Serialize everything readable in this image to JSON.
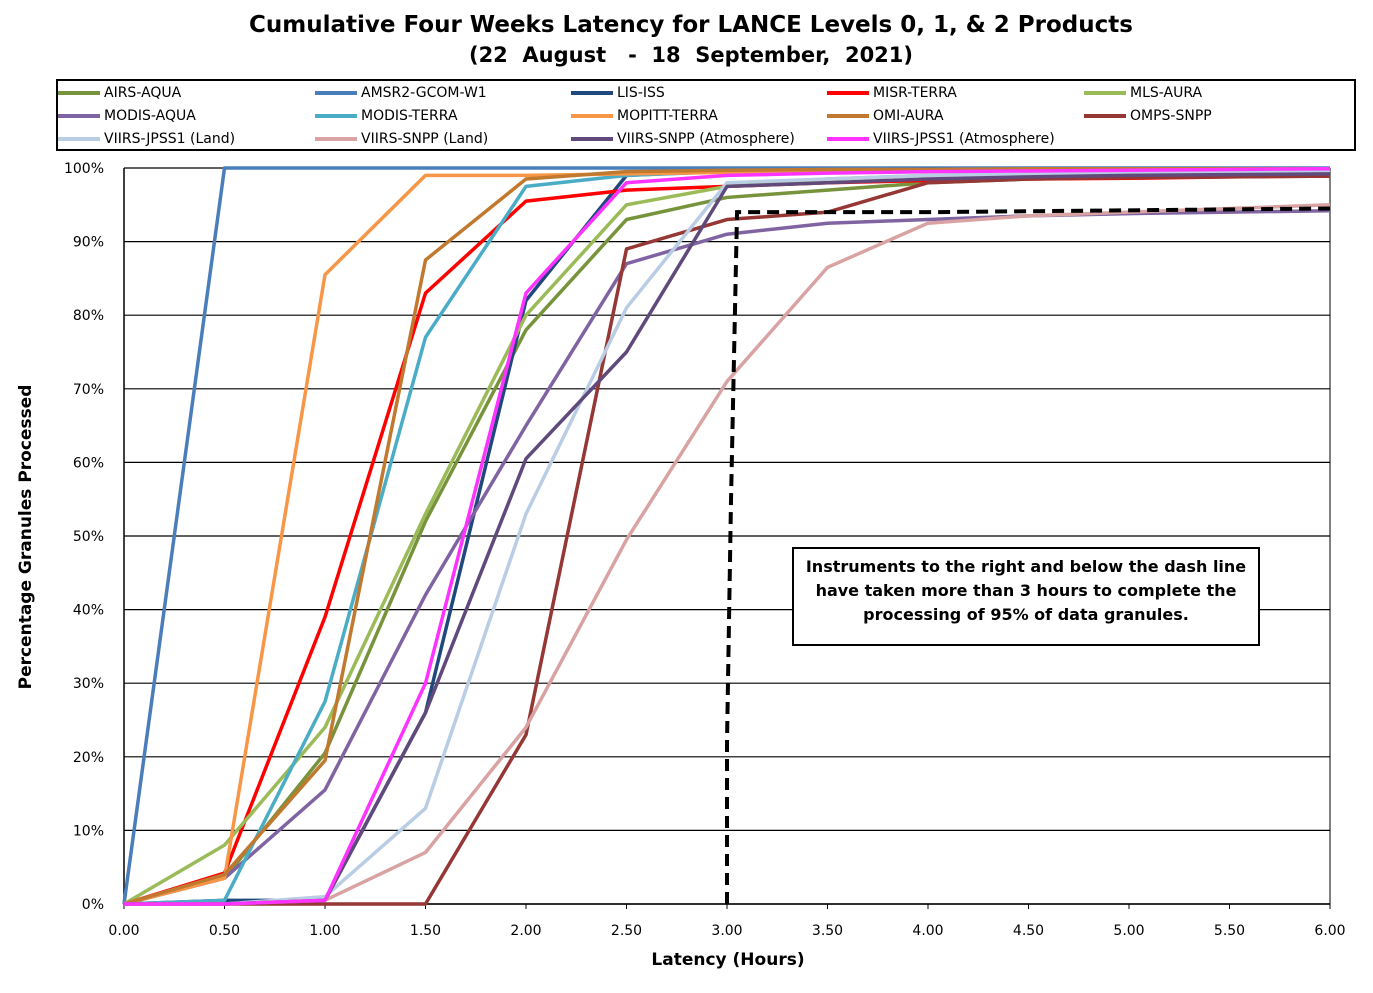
{
  "chart_data": {
    "type": "line",
    "title": "Cumulative Four Weeks Latency  for LANCE Levels 0, 1, & 2 Products",
    "subtitle": "(22  August   -  18  September,  2021)",
    "xlabel": "Latency (Hours)",
    "ylabel": "Percentage Granules Processed",
    "x": [
      0,
      0.5,
      1.0,
      1.5,
      2.0,
      2.5,
      3.0,
      3.5,
      4.0,
      4.5,
      5.0,
      5.5,
      6.0
    ],
    "xlim": [
      0,
      6
    ],
    "ylim": [
      0,
      100
    ],
    "x_ticks": [
      "0.00",
      "0.50",
      "1.00",
      "1.50",
      "2.00",
      "2.50",
      "3.00",
      "3.50",
      "4.00",
      "4.50",
      "5.00",
      "5.50",
      "6.00"
    ],
    "y_ticks": [
      "0%",
      "10%",
      "20%",
      "30%",
      "40%",
      "50%",
      "60%",
      "70%",
      "80%",
      "90%",
      "100%"
    ],
    "grid": "horizontal",
    "legend_position": "top",
    "series": [
      {
        "name": "AIRS-AQUA",
        "color": "#77933c",
        "values": [
          0,
          3.5,
          20.5,
          52,
          78,
          93,
          96,
          97,
          98,
          98.5,
          98.7,
          99,
          99.2
        ]
      },
      {
        "name": "AMSR2-GCOM-W1",
        "color": "#4a7ebb",
        "values": [
          0,
          100,
          100,
          100,
          100,
          100,
          100,
          100,
          100,
          100,
          100,
          100,
          100
        ]
      },
      {
        "name": "LIS-ISS",
        "color": "#1f497d",
        "values": [
          0,
          0.5,
          0.5,
          26,
          82,
          99,
          99.6,
          99.7,
          99.8,
          99.8,
          99.9,
          99.9,
          99.9
        ]
      },
      {
        "name": "MISR-TERRA",
        "color": "#ff0000",
        "values": [
          0,
          4.2,
          39,
          83,
          95.5,
          97,
          97.5,
          98,
          98.3,
          98.5,
          98.6,
          98.8,
          98.9
        ]
      },
      {
        "name": "MLS-AURA",
        "color": "#9bbb59",
        "values": [
          0,
          8,
          24,
          53,
          80,
          95,
          97.5,
          98.5,
          99,
          99.3,
          99.5,
          99.6,
          99.7
        ]
      },
      {
        "name": "MODIS-AQUA",
        "color": "#8064a2",
        "values": [
          0,
          3.5,
          15.5,
          42,
          65,
          87,
          91,
          92.5,
          93,
          93.5,
          93.8,
          94,
          94.2
        ]
      },
      {
        "name": "MODIS-TERRA",
        "color": "#4bacc6",
        "values": [
          0,
          0.5,
          27.5,
          77,
          97.5,
          99,
          99.5,
          99.6,
          99.7,
          99.8,
          99.8,
          99.9,
          99.9
        ]
      },
      {
        "name": "MOPITT-TERRA",
        "color": "#f79646",
        "values": [
          0,
          3.5,
          85.5,
          99,
          99,
          99.2,
          99.4,
          99.5,
          99.6,
          99.7,
          99.7,
          99.8,
          99.8
        ]
      },
      {
        "name": "OMI-AURA",
        "color": "#c0792f",
        "values": [
          0,
          4,
          19.5,
          87.5,
          98.5,
          99.5,
          99.7,
          99.8,
          99.8,
          99.9,
          99.9,
          99.9,
          99.9
        ]
      },
      {
        "name": "OMPS-SNPP",
        "color": "#953735",
        "values": [
          0,
          0,
          0,
          0,
          23,
          89,
          93,
          94,
          98,
          98.5,
          98.7,
          98.8,
          98.9
        ]
      },
      {
        "name": "VIIRS-JPSS1 (Land)",
        "color": "#b9cde5",
        "values": [
          0,
          0,
          1,
          13,
          53,
          81,
          98,
          98.5,
          99,
          99.2,
          99.3,
          99.4,
          99.5
        ]
      },
      {
        "name": "VIIRS-SNPP (Land)",
        "color": "#d9a3a3",
        "values": [
          0,
          0,
          0.5,
          7,
          24,
          49.5,
          71,
          86.5,
          92.5,
          93.5,
          94,
          94.5,
          95
        ]
      },
      {
        "name": "VIIRS-SNPP (Atmosphere)",
        "color": "#604a7b",
        "values": [
          0,
          0,
          0.5,
          26,
          60.5,
          75,
          97.5,
          98,
          98.5,
          98.8,
          99,
          99.1,
          99.2
        ]
      },
      {
        "name": "VIIRS-JPSS1 (Atmosphere)",
        "color": "#ff33ff",
        "values": [
          0,
          0,
          0.5,
          30,
          83,
          98,
          99,
          99.3,
          99.5,
          99.6,
          99.7,
          99.8,
          99.9
        ]
      }
    ],
    "threshold_line": {
      "style": "dashed",
      "color": "#000000",
      "points": [
        [
          3.0,
          0
        ],
        [
          3.0,
          22
        ],
        [
          3.02,
          55
        ],
        [
          3.05,
          94
        ],
        [
          4.0,
          94
        ],
        [
          6.0,
          94.5
        ]
      ]
    },
    "annotation": "Instruments to the right and below the dash line have taken more than 3 hours to complete the processing of 95% of data granules."
  }
}
